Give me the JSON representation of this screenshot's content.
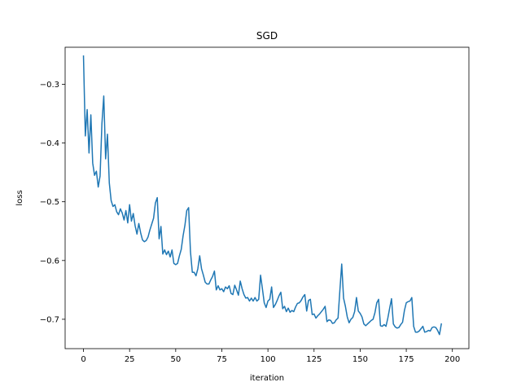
{
  "chart_data": {
    "type": "line",
    "title": "SGD",
    "xlabel": "iteration",
    "ylabel": "loss",
    "xlim": [
      -9.95,
      208.95
    ],
    "ylim": [
      -0.75,
      -0.237
    ],
    "xticks": [
      0,
      25,
      50,
      75,
      100,
      125,
      150,
      175,
      200
    ],
    "xtick_labels": [
      "0",
      "25",
      "50",
      "75",
      "100",
      "125",
      "150",
      "175",
      "200"
    ],
    "yticks": [
      -0.7,
      -0.6,
      -0.5,
      -0.4,
      -0.3
    ],
    "ytick_labels": [
      "−0.7",
      "−0.6",
      "−0.5",
      "−0.4",
      "−0.3"
    ],
    "grid": false,
    "legend": "none",
    "series": [
      {
        "color": "#1f77b4",
        "x_start": 0,
        "x_step": 1,
        "values": [
          -0.252,
          -0.388,
          -0.343,
          -0.417,
          -0.352,
          -0.434,
          -0.455,
          -0.448,
          -0.475,
          -0.456,
          -0.367,
          -0.32,
          -0.427,
          -0.385,
          -0.468,
          -0.498,
          -0.508,
          -0.505,
          -0.517,
          -0.522,
          -0.512,
          -0.519,
          -0.531,
          -0.515,
          -0.536,
          -0.505,
          -0.533,
          -0.52,
          -0.541,
          -0.555,
          -0.537,
          -0.553,
          -0.565,
          -0.568,
          -0.566,
          -0.56,
          -0.548,
          -0.538,
          -0.528,
          -0.502,
          -0.493,
          -0.563,
          -0.542,
          -0.589,
          -0.582,
          -0.59,
          -0.584,
          -0.594,
          -0.582,
          -0.605,
          -0.607,
          -0.605,
          -0.592,
          -0.581,
          -0.558,
          -0.54,
          -0.515,
          -0.51,
          -0.585,
          -0.62,
          -0.62,
          -0.626,
          -0.614,
          -0.592,
          -0.614,
          -0.625,
          -0.637,
          -0.64,
          -0.64,
          -0.633,
          -0.627,
          -0.618,
          -0.65,
          -0.643,
          -0.65,
          -0.648,
          -0.653,
          -0.645,
          -0.648,
          -0.643,
          -0.656,
          -0.658,
          -0.642,
          -0.65,
          -0.659,
          -0.635,
          -0.648,
          -0.658,
          -0.664,
          -0.663,
          -0.669,
          -0.664,
          -0.669,
          -0.663,
          -0.669,
          -0.666,
          -0.625,
          -0.648,
          -0.672,
          -0.68,
          -0.669,
          -0.666,
          -0.645,
          -0.68,
          -0.675,
          -0.668,
          -0.66,
          -0.654,
          -0.682,
          -0.678,
          -0.687,
          -0.681,
          -0.688,
          -0.685,
          -0.687,
          -0.679,
          -0.673,
          -0.672,
          -0.668,
          -0.662,
          -0.658,
          -0.686,
          -0.668,
          -0.666,
          -0.692,
          -0.691,
          -0.698,
          -0.694,
          -0.691,
          -0.687,
          -0.683,
          -0.678,
          -0.704,
          -0.701,
          -0.702,
          -0.707,
          -0.706,
          -0.701,
          -0.698,
          -0.651,
          -0.606,
          -0.664,
          -0.678,
          -0.696,
          -0.706,
          -0.7,
          -0.697,
          -0.687,
          -0.663,
          -0.686,
          -0.69,
          -0.696,
          -0.708,
          -0.711,
          -0.708,
          -0.705,
          -0.702,
          -0.7,
          -0.689,
          -0.672,
          -0.666,
          -0.711,
          -0.712,
          -0.709,
          -0.712,
          -0.698,
          -0.681,
          -0.665,
          -0.708,
          -0.713,
          -0.715,
          -0.714,
          -0.709,
          -0.705,
          -0.685,
          -0.672,
          -0.67,
          -0.669,
          -0.663,
          -0.712,
          -0.722,
          -0.722,
          -0.72,
          -0.716,
          -0.712,
          -0.722,
          -0.721,
          -0.719,
          -0.72,
          -0.714,
          -0.713,
          -0.714,
          -0.719,
          -0.726,
          -0.708
        ]
      }
    ]
  }
}
